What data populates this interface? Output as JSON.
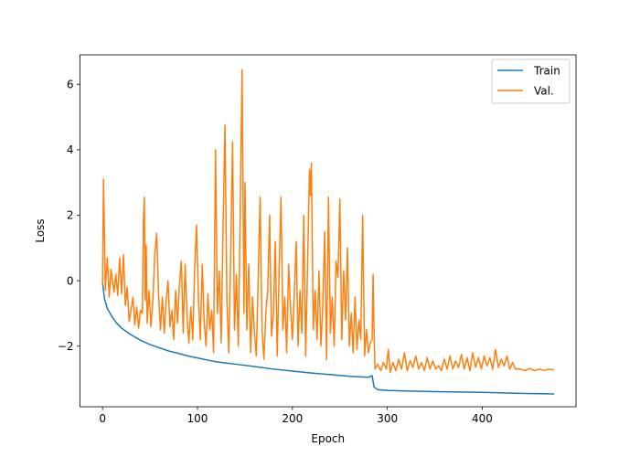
{
  "chart_data": {
    "type": "line",
    "title": "",
    "xlabel": "Epoch",
    "ylabel": "Loss",
    "xlim": [
      -23.75,
      498.75
    ],
    "ylim": [
      -3.85,
      6.9
    ],
    "xticks": [
      0,
      100,
      200,
      300,
      400
    ],
    "yticks": [
      -2,
      0,
      2,
      4,
      6
    ],
    "xtick_labels": [
      "0",
      "100",
      "200",
      "300",
      "400"
    ],
    "ytick_labels": [
      "−2",
      "0",
      "2",
      "4",
      "6"
    ],
    "grid": false,
    "legend_position": "top-right",
    "series": [
      {
        "name": "Train",
        "color": "#1f77b4",
        "points": [
          [
            0,
            -0.05
          ],
          [
            2,
            -0.55
          ],
          [
            5,
            -0.85
          ],
          [
            10,
            -1.1
          ],
          [
            15,
            -1.3
          ],
          [
            20,
            -1.45
          ],
          [
            30,
            -1.65
          ],
          [
            40,
            -1.82
          ],
          [
            50,
            -1.95
          ],
          [
            60,
            -2.05
          ],
          [
            70,
            -2.15
          ],
          [
            80,
            -2.22
          ],
          [
            90,
            -2.3
          ],
          [
            100,
            -2.36
          ],
          [
            120,
            -2.48
          ],
          [
            140,
            -2.55
          ],
          [
            160,
            -2.62
          ],
          [
            180,
            -2.7
          ],
          [
            200,
            -2.76
          ],
          [
            220,
            -2.82
          ],
          [
            240,
            -2.87
          ],
          [
            260,
            -2.92
          ],
          [
            280,
            -2.95
          ],
          [
            284,
            -2.9
          ],
          [
            286,
            -3.25
          ],
          [
            290,
            -3.33
          ],
          [
            300,
            -3.35
          ],
          [
            320,
            -3.37
          ],
          [
            350,
            -3.39
          ],
          [
            400,
            -3.41
          ],
          [
            440,
            -3.44
          ],
          [
            475,
            -3.46
          ]
        ]
      },
      {
        "name": "Val.",
        "color": "#ff7f0e",
        "points": [
          [
            0,
            -0.1
          ],
          [
            1,
            3.1
          ],
          [
            3,
            -0.3
          ],
          [
            5,
            0.7
          ],
          [
            7,
            -0.5
          ],
          [
            9,
            0.35
          ],
          [
            12,
            -0.35
          ],
          [
            14,
            0.2
          ],
          [
            16,
            -0.45
          ],
          [
            18,
            0.7
          ],
          [
            20,
            -0.4
          ],
          [
            22,
            0.8
          ],
          [
            24,
            -0.75
          ],
          [
            26,
            -0.2
          ],
          [
            28,
            -1.25
          ],
          [
            30,
            -0.9
          ],
          [
            32,
            -0.5
          ],
          [
            34,
            -1.35
          ],
          [
            36,
            -0.8
          ],
          [
            38,
            -1.45
          ],
          [
            40,
            -0.9
          ],
          [
            42,
            -1.0
          ],
          [
            43,
            1.8
          ],
          [
            44,
            2.55
          ],
          [
            45,
            -0.6
          ],
          [
            46,
            1.1
          ],
          [
            47,
            -1.3
          ],
          [
            49,
            -0.3
          ],
          [
            51,
            -1.4
          ],
          [
            53,
            -0.6
          ],
          [
            55,
            0.8
          ],
          [
            57,
            1.45
          ],
          [
            59,
            -0.4
          ],
          [
            61,
            -1.5
          ],
          [
            63,
            -0.5
          ],
          [
            65,
            -1.6
          ],
          [
            67,
            -0.6
          ],
          [
            69,
            0.0
          ],
          [
            71,
            -1.4
          ],
          [
            73,
            -0.9
          ],
          [
            75,
            -1.8
          ],
          [
            77,
            -0.3
          ],
          [
            79,
            -1.3
          ],
          [
            81,
            -0.1
          ],
          [
            83,
            0.6
          ],
          [
            85,
            -1.6
          ],
          [
            87,
            0.5
          ],
          [
            89,
            -1.1
          ],
          [
            91,
            -1.9
          ],
          [
            93,
            -0.8
          ],
          [
            95,
            -1.8
          ],
          [
            97,
            0.3
          ],
          [
            99,
            1.7
          ],
          [
            101,
            -0.5
          ],
          [
            103,
            -1.8
          ],
          [
            105,
            0.5
          ],
          [
            107,
            -1.2
          ],
          [
            109,
            -2.0
          ],
          [
            111,
            -0.4
          ],
          [
            113,
            -1.5
          ],
          [
            115,
            -0.9
          ],
          [
            117,
            -2.2
          ],
          [
            119,
            4.0
          ],
          [
            121,
            -1.0
          ],
          [
            123,
            0.3
          ],
          [
            125,
            -1.9
          ],
          [
            127,
            1.7
          ],
          [
            129,
            4.75
          ],
          [
            131,
            -0.6
          ],
          [
            133,
            -2.2
          ],
          [
            135,
            0.8
          ],
          [
            137,
            4.25
          ],
          [
            139,
            -1.5
          ],
          [
            141,
            0.2
          ],
          [
            143,
            -2.0
          ],
          [
            145,
            2.0
          ],
          [
            147,
            6.45
          ],
          [
            149,
            -1.0
          ],
          [
            150,
            3.0
          ],
          [
            152,
            -1.5
          ],
          [
            154,
            0.5
          ],
          [
            156,
            -2.2
          ],
          [
            158,
            -0.5
          ],
          [
            160,
            -1.6
          ],
          [
            162,
            -2.3
          ],
          [
            164,
            0.1
          ],
          [
            166,
            2.55
          ],
          [
            168,
            -1.5
          ],
          [
            170,
            -2.4
          ],
          [
            172,
            -1.0
          ],
          [
            174,
            -0.3
          ],
          [
            176,
            2.0
          ],
          [
            178,
            -1.7
          ],
          [
            180,
            -1.0
          ],
          [
            182,
            1.2
          ],
          [
            184,
            -2.3
          ],
          [
            186,
            0.3
          ],
          [
            188,
            2.55
          ],
          [
            190,
            -1.5
          ],
          [
            192,
            -0.5
          ],
          [
            194,
            -2.2
          ],
          [
            196,
            0.5
          ],
          [
            198,
            -0.8
          ],
          [
            200,
            -1.8
          ],
          [
            202,
            -0.4
          ],
          [
            204,
            1.2
          ],
          [
            206,
            -2.0
          ],
          [
            208,
            -0.3
          ],
          [
            210,
            -1.6
          ],
          [
            212,
            2.0
          ],
          [
            214,
            -2.3
          ],
          [
            216,
            0.5
          ],
          [
            218,
            3.4
          ],
          [
            219,
            2.6
          ],
          [
            220,
            3.6
          ],
          [
            222,
            -1.5
          ],
          [
            224,
            -0.3
          ],
          [
            226,
            -1.8
          ],
          [
            228,
            0.3
          ],
          [
            230,
            -2.0
          ],
          [
            232,
            -0.8
          ],
          [
            234,
            1.5
          ],
          [
            236,
            -2.4
          ],
          [
            238,
            2.55
          ],
          [
            240,
            -1.6
          ],
          [
            242,
            -0.5
          ],
          [
            244,
            -2.0
          ],
          [
            246,
            0.6
          ],
          [
            248,
            0.1
          ],
          [
            250,
            2.5
          ],
          [
            252,
            -1.8
          ],
          [
            254,
            0.3
          ],
          [
            256,
            -1.2
          ],
          [
            258,
            1.0
          ],
          [
            260,
            -2.0
          ],
          [
            262,
            -1.0
          ],
          [
            264,
            -2.2
          ],
          [
            266,
            -0.5
          ],
          [
            268,
            -2.1
          ],
          [
            270,
            -1.2
          ],
          [
            272,
            -1.8
          ],
          [
            274,
            2.0
          ],
          [
            276,
            -2.3
          ],
          [
            278,
            -1.5
          ],
          [
            280,
            -2.2
          ],
          [
            282,
            -1.9
          ],
          [
            284,
            -1.8
          ],
          [
            285,
            0.2
          ],
          [
            286,
            -1.5
          ],
          [
            287,
            -2.7
          ],
          [
            290,
            -2.55
          ],
          [
            293,
            -2.75
          ],
          [
            296,
            -2.5
          ],
          [
            299,
            -2.7
          ],
          [
            301,
            -2.1
          ],
          [
            303,
            -2.8
          ],
          [
            306,
            -2.5
          ],
          [
            309,
            -2.75
          ],
          [
            312,
            -2.4
          ],
          [
            315,
            -2.7
          ],
          [
            318,
            -2.2
          ],
          [
            321,
            -2.75
          ],
          [
            324,
            -2.45
          ],
          [
            327,
            -2.65
          ],
          [
            330,
            -2.3
          ],
          [
            333,
            -2.7
          ],
          [
            336,
            -2.5
          ],
          [
            339,
            -2.75
          ],
          [
            342,
            -2.35
          ],
          [
            345,
            -2.7
          ],
          [
            348,
            -2.45
          ],
          [
            351,
            -2.7
          ],
          [
            354,
            -2.6
          ],
          [
            357,
            -2.75
          ],
          [
            360,
            -2.4
          ],
          [
            363,
            -2.7
          ],
          [
            366,
            -2.3
          ],
          [
            369,
            -2.7
          ],
          [
            372,
            -2.45
          ],
          [
            375,
            -2.65
          ],
          [
            378,
            -2.25
          ],
          [
            381,
            -2.7
          ],
          [
            384,
            -2.35
          ],
          [
            387,
            -2.75
          ],
          [
            390,
            -2.2
          ],
          [
            393,
            -2.65
          ],
          [
            396,
            -2.35
          ],
          [
            399,
            -2.7
          ],
          [
            402,
            -2.3
          ],
          [
            405,
            -2.6
          ],
          [
            408,
            -2.35
          ],
          [
            411,
            -2.7
          ],
          [
            414,
            -2.1
          ],
          [
            417,
            -2.65
          ],
          [
            420,
            -2.4
          ],
          [
            423,
            -2.6
          ],
          [
            426,
            -2.3
          ],
          [
            429,
            -2.7
          ],
          [
            432,
            -2.5
          ],
          [
            435,
            -2.7
          ],
          [
            440,
            -2.7
          ],
          [
            445,
            -2.75
          ],
          [
            450,
            -2.68
          ],
          [
            455,
            -2.75
          ],
          [
            460,
            -2.7
          ],
          [
            465,
            -2.74
          ],
          [
            470,
            -2.7
          ],
          [
            475,
            -2.72
          ]
        ]
      }
    ]
  }
}
